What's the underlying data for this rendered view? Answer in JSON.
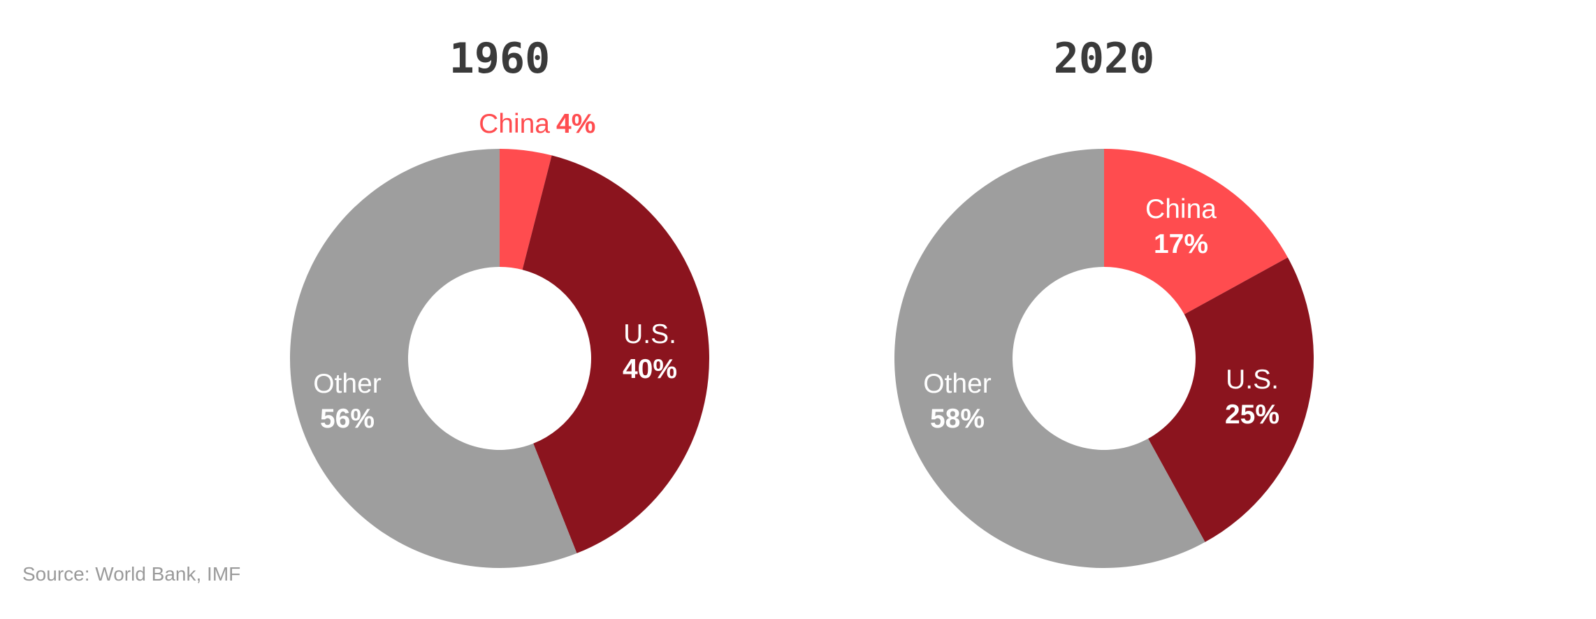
{
  "chart_data": [
    {
      "type": "pie",
      "variant": "donut",
      "title": "1960",
      "slices": [
        {
          "label": "China",
          "value": 4,
          "value_text": "4%",
          "color": "#FF4C4F"
        },
        {
          "label": "U.S.",
          "value": 40,
          "value_text": "40%",
          "color": "#8B141E"
        },
        {
          "label": "Other",
          "value": 56,
          "value_text": "56%",
          "color": "#9E9E9E"
        }
      ]
    },
    {
      "type": "pie",
      "variant": "donut",
      "title": "2020",
      "slices": [
        {
          "label": "China",
          "value": 17,
          "value_text": "17%",
          "color": "#FF4C4F"
        },
        {
          "label": "U.S.",
          "value": 25,
          "value_text": "25%",
          "color": "#8B141E"
        },
        {
          "label": "Other",
          "value": 58,
          "value_text": "58%",
          "color": "#9E9E9E"
        }
      ]
    }
  ],
  "source": "Source: World Bank, IMF"
}
